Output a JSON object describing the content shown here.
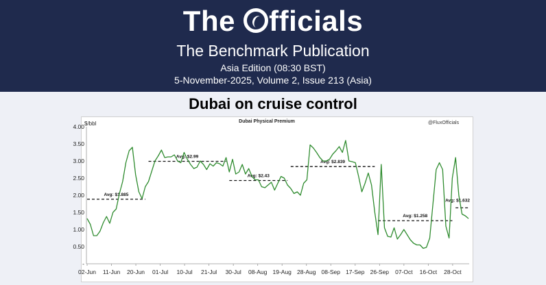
{
  "header": {
    "logo_text": "The Officials",
    "publication": "The Benchmark Publication",
    "edition": "Asia Edition (08:30 BST)",
    "issue": "5-November-2025, Volume 2, Issue 213 (Asia)",
    "background_color": "#1f2a4d"
  },
  "headline": "Dubai on cruise control",
  "chart_data": {
    "type": "line",
    "title": "Dubai Physical Premium",
    "ylabel": "$/bbl",
    "watermark": "@FluxOfficials",
    "ylim": [
      0,
      4
    ],
    "y_ticks": [
      "-",
      "0.50",
      "1.00",
      "1.50",
      "2.00",
      "2.50",
      "3.00",
      "3.50",
      "4.00"
    ],
    "x_ticks": [
      "02-Jun",
      "11-Jun",
      "20-Jun",
      "01-Jul",
      "10-Jul",
      "21-Jul",
      "30-Jul",
      "08-Aug",
      "19-Aug",
      "28-Aug",
      "08-Sep",
      "17-Sep",
      "26-Sep",
      "07-Oct",
      "16-Oct",
      "28-Oct"
    ],
    "series_color": "#2e8b2e",
    "series": [
      {
        "values": [
          1.32,
          1.15,
          0.82,
          0.82,
          0.95,
          1.2,
          1.38,
          1.18,
          1.5,
          1.6,
          2.05,
          2.4,
          2.95,
          3.3,
          3.4,
          2.6,
          2.1,
          1.9,
          2.25,
          2.4,
          2.7,
          3.0,
          3.15,
          3.32,
          3.1,
          3.12,
          3.12,
          3.18,
          3.0,
          2.95,
          3.25,
          3.05,
          2.9,
          2.78,
          2.82,
          3.0,
          2.9,
          2.75,
          2.92,
          2.85,
          2.95,
          2.92,
          2.85,
          3.1,
          2.68,
          3.05,
          2.62,
          2.68,
          2.9,
          2.62,
          2.78,
          2.55,
          2.45,
          2.45,
          2.25,
          2.22,
          2.3,
          2.38,
          2.15,
          2.35,
          2.55,
          2.5,
          2.3,
          2.2,
          2.05,
          2.1,
          2.0,
          2.35,
          2.45,
          3.47,
          3.38,
          3.25,
          3.1,
          3.0,
          3.0,
          3.05,
          3.2,
          3.3,
          3.42,
          3.25,
          3.6,
          3.0,
          2.98,
          2.95,
          2.55,
          2.1,
          2.35,
          2.65,
          2.3,
          1.5,
          0.85,
          2.9,
          1.05,
          0.8,
          0.78,
          1.05,
          0.72,
          0.85,
          1.0,
          0.85,
          0.7,
          0.6,
          0.55,
          0.55,
          0.45,
          0.48,
          0.75,
          1.75,
          2.75,
          2.95,
          2.75,
          1.1,
          0.75,
          2.5,
          3.1,
          2.0,
          1.45,
          1.4,
          1.32
        ]
      }
    ],
    "averages": [
      {
        "label": "Avg: $1.885",
        "value": 1.885
      },
      {
        "label": "Avg: $2.99",
        "value": 2.99
      },
      {
        "label": "Avg: $2.43",
        "value": 2.43
      },
      {
        "label": "Avg: $2.839",
        "value": 2.839
      },
      {
        "label": "Avg: $1.258",
        "value": 1.258
      },
      {
        "label": "Avg: $1.632",
        "value": 1.632
      }
    ],
    "grid": false,
    "legend": "none"
  }
}
